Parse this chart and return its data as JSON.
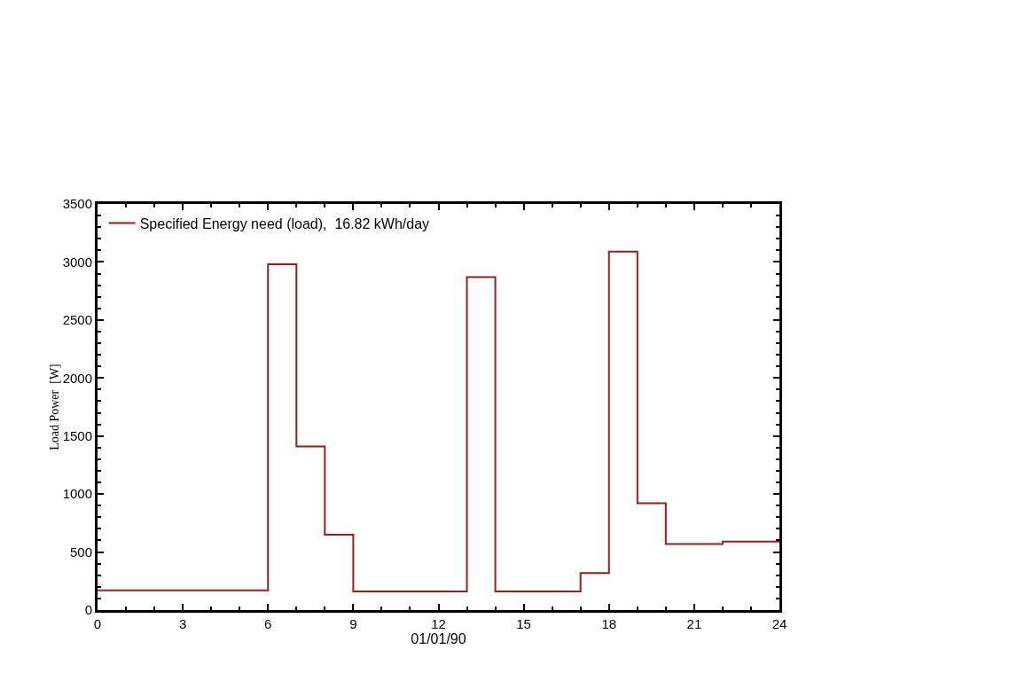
{
  "chart_data": {
    "type": "step",
    "xlabel": "01/01/90",
    "ylabel": "Load Power  [W]",
    "x": [
      0,
      1,
      2,
      3,
      4,
      5,
      6,
      7,
      8,
      9,
      10,
      11,
      12,
      13,
      14,
      15,
      16,
      17,
      18,
      19,
      20,
      21,
      22,
      23,
      24
    ],
    "series": [
      {
        "name": "Specified Energy need (load),  16.82 kWh/day",
        "color": "#9b1c1c",
        "values": [
          170,
          170,
          170,
          170,
          170,
          170,
          2980,
          1410,
          650,
          160,
          160,
          160,
          160,
          2870,
          160,
          160,
          160,
          320,
          3090,
          920,
          570,
          570,
          590,
          590,
          590
        ]
      }
    ],
    "xlim": [
      0,
      24
    ],
    "xticks": [
      0,
      3,
      6,
      9,
      12,
      15,
      18,
      21,
      24
    ],
    "ylim": [
      0,
      3500
    ],
    "yticks": [
      0,
      500,
      1000,
      1500,
      2000,
      2500,
      3000,
      3500
    ],
    "grid": false,
    "legend": "top left",
    "line_style": "solid",
    "marker": "none"
  }
}
